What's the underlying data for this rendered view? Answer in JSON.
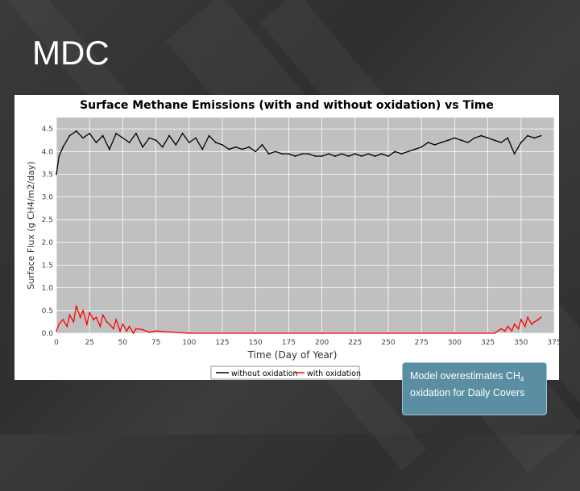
{
  "slide": {
    "title": "MDC"
  },
  "callout": {
    "text_before_sub": "Model overestimates CH",
    "subscript": "4",
    "text_after_sub": "oxidation for Daily Covers"
  },
  "colors": {
    "plot_background": "#c0c0c0",
    "without_oxidation": "#000000",
    "with_oxidation": "#ff0000",
    "callout_fill": "#5b8ea3"
  },
  "chart_data": {
    "type": "line",
    "title": "Surface Methane Emissions (with and without oxidation) vs Time",
    "xlabel": "Time (Day of Year)",
    "ylabel": "Surface Flux (g CH4/m2/day)",
    "xlim": [
      0,
      375
    ],
    "ylim": [
      0,
      4.75
    ],
    "x_ticks": [
      "0",
      "25",
      "50",
      "75",
      "100",
      "125",
      "150",
      "175",
      "200",
      "225",
      "250",
      "275",
      "300",
      "325",
      "350",
      "375"
    ],
    "y_ticks": [
      "0.0",
      "0.5",
      "1.0",
      "1.5",
      "2.0",
      "2.5",
      "3.0",
      "3.5",
      "4.0",
      "4.5"
    ],
    "grid": true,
    "legend_position": "bottom-right",
    "series": [
      {
        "name": "without oxidation",
        "color": "#000000",
        "x": [
          0,
          2,
          5,
          10,
          15,
          20,
          25,
          30,
          35,
          40,
          45,
          50,
          55,
          60,
          65,
          70,
          75,
          80,
          85,
          90,
          95,
          100,
          105,
          110,
          115,
          120,
          125,
          130,
          135,
          140,
          145,
          150,
          155,
          160,
          165,
          170,
          175,
          180,
          185,
          190,
          195,
          200,
          205,
          210,
          215,
          220,
          225,
          230,
          235,
          240,
          245,
          250,
          255,
          260,
          265,
          270,
          275,
          280,
          285,
          290,
          295,
          300,
          305,
          310,
          315,
          320,
          325,
          330,
          335,
          340,
          345,
          350,
          355,
          360,
          365
        ],
        "y": [
          3.5,
          3.9,
          4.1,
          4.35,
          4.45,
          4.3,
          4.4,
          4.2,
          4.35,
          4.05,
          4.4,
          4.3,
          4.2,
          4.4,
          4.1,
          4.3,
          4.25,
          4.1,
          4.35,
          4.15,
          4.4,
          4.2,
          4.3,
          4.05,
          4.35,
          4.2,
          4.15,
          4.05,
          4.1,
          4.05,
          4.1,
          4.0,
          4.15,
          3.95,
          4.0,
          3.95,
          3.95,
          3.9,
          3.95,
          3.95,
          3.9,
          3.9,
          3.95,
          3.9,
          3.95,
          3.9,
          3.95,
          3.9,
          3.95,
          3.9,
          3.95,
          3.9,
          4.0,
          3.95,
          4.0,
          4.05,
          4.1,
          4.2,
          4.15,
          4.2,
          4.25,
          4.3,
          4.25,
          4.2,
          4.3,
          4.35,
          4.3,
          4.25,
          4.2,
          4.3,
          3.95,
          4.2,
          4.35,
          4.3,
          4.35
        ]
      },
      {
        "name": "with oxidation",
        "color": "#ff0000",
        "x": [
          0,
          2,
          5,
          8,
          10,
          13,
          15,
          18,
          20,
          23,
          25,
          28,
          30,
          33,
          35,
          38,
          40,
          43,
          45,
          48,
          50,
          53,
          55,
          58,
          60,
          65,
          70,
          75,
          100,
          150,
          200,
          250,
          300,
          330,
          335,
          338,
          340,
          343,
          345,
          348,
          350,
          353,
          355,
          358,
          360,
          363,
          365
        ],
        "y": [
          0.05,
          0.2,
          0.3,
          0.15,
          0.4,
          0.25,
          0.6,
          0.35,
          0.5,
          0.2,
          0.45,
          0.3,
          0.35,
          0.15,
          0.4,
          0.25,
          0.2,
          0.1,
          0.3,
          0.05,
          0.2,
          0.05,
          0.15,
          0.0,
          0.1,
          0.08,
          0.02,
          0.05,
          0.0,
          0.0,
          0.0,
          0.0,
          0.0,
          0.0,
          0.1,
          0.05,
          0.15,
          0.05,
          0.2,
          0.1,
          0.3,
          0.15,
          0.35,
          0.2,
          0.25,
          0.3,
          0.35
        ]
      }
    ]
  }
}
